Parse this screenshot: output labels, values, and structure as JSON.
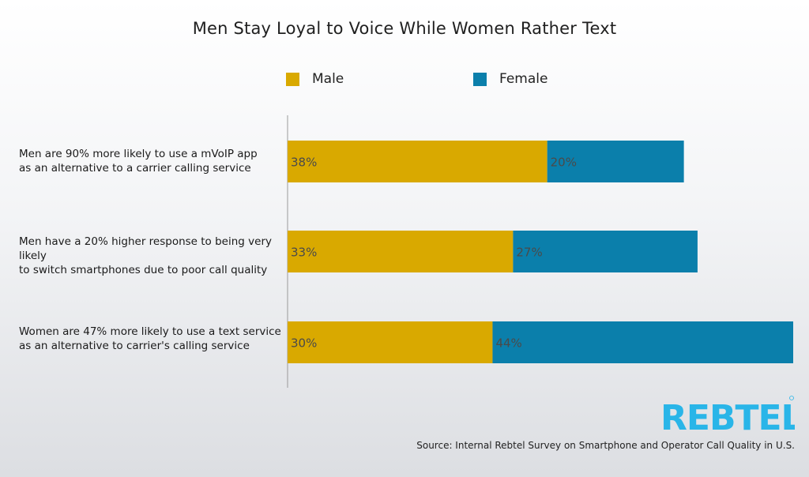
{
  "colors": {
    "male": "#d9a900",
    "female": "#0b7fab",
    "brand": "#29b5e8"
  },
  "chart_data": {
    "type": "bar",
    "orientation": "horizontal",
    "stacked": true,
    "title": "Men Stay Loyal to Voice While Women Rather Text",
    "categories": [
      [
        "Men are 90% more likely to use a mVoIP app",
        "as an alternative to a carrier calling service"
      ],
      [
        "Men have a 20% higher response to being very likely",
        "to switch smartphones due to poor call quality"
      ],
      [
        "Women are 47% more likely to use a text service",
        "as an alternative to carrier's calling service"
      ]
    ],
    "series": [
      {
        "name": "Male",
        "values": [
          38,
          33,
          30
        ]
      },
      {
        "name": "Female",
        "values": [
          20,
          27,
          44
        ]
      }
    ],
    "value_suffix": "%",
    "xlim": [
      0,
      74
    ],
    "legend_position": "top",
    "grid": false
  },
  "footer": {
    "logo_text": "REBTEL",
    "source": "Source: Internal Rebtel Survey on Smartphone and Operator Call Quality in U.S."
  }
}
